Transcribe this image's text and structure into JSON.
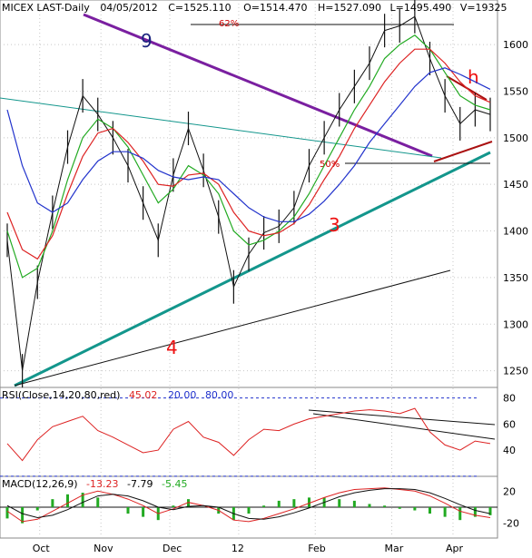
{
  "chart_data": [
    {
      "type": "line",
      "panel": "price",
      "header": {
        "symbol": "MICEX LAST-Daily",
        "date": "04/05/2012",
        "close": "C=1525.110",
        "open": "O=1514.470",
        "high": "H=1527.090",
        "low": "L=1495.490",
        "volume": "V=19325"
      },
      "x_tick_labels": [
        "Oct",
        "Nov",
        "Dec",
        "12",
        "Feb",
        "Mar",
        "Apr"
      ],
      "y_tick_labels": [
        "1600",
        "1550",
        "1500",
        "1450",
        "1400",
        "1350",
        "1300",
        "1250"
      ],
      "ylim": [
        1237,
        1640
      ],
      "grid": true,
      "annotations": [
        "62%",
        "50%",
        "9",
        "3",
        "4",
        "h"
      ],
      "colors": {
        "close": "#111111",
        "ma_fast": "#22aa22",
        "ma_mid": "#dd2222",
        "ma_slow": "#2233cc",
        "line9": "#7a1fa0",
        "line3": "#13968c",
        "h": "#aa1111",
        "label9": "#1a237e",
        "label3": "#ee1111",
        "label4": "#ee1111"
      },
      "series": [
        {
          "x": [
            0,
            4,
            8,
            12,
            16,
            20,
            24,
            28,
            32,
            36,
            40,
            44,
            48,
            52,
            56,
            60,
            64,
            68,
            72,
            76,
            80,
            84,
            88,
            92,
            96,
            100,
            104,
            108,
            112,
            116,
            120,
            124,
            128
          ],
          "values": [
            1390,
            1250,
            1345,
            1420,
            1490,
            1545,
            1525,
            1500,
            1470,
            1430,
            1390,
            1460,
            1510,
            1465,
            1415,
            1340,
            1375,
            1398,
            1405,
            1425,
            1470,
            1500,
            1530,
            1555,
            1580,
            1615,
            1620,
            1630,
            1585,
            1545,
            1515,
            1530,
            1525
          ]
        },
        {
          "x": [
            0,
            4,
            8,
            12,
            16,
            20,
            24,
            28,
            32,
            36,
            40,
            44,
            48,
            52,
            56,
            60,
            64,
            68,
            72,
            76,
            80,
            84,
            88,
            92,
            96,
            100,
            104,
            108,
            112,
            116,
            120,
            124,
            128
          ],
          "values": [
            1400,
            1350,
            1360,
            1400,
            1455,
            1500,
            1520,
            1510,
            1490,
            1460,
            1430,
            1445,
            1470,
            1460,
            1440,
            1400,
            1385,
            1390,
            1400,
            1415,
            1440,
            1470,
            1500,
            1530,
            1555,
            1585,
            1600,
            1610,
            1595,
            1570,
            1545,
            1535,
            1530
          ]
        },
        {
          "x": [
            0,
            4,
            8,
            12,
            16,
            20,
            24,
            28,
            32,
            36,
            40,
            44,
            48,
            52,
            56,
            60,
            64,
            68,
            72,
            76,
            80,
            84,
            88,
            92,
            96,
            100,
            104,
            108,
            112,
            116,
            120,
            124,
            128
          ],
          "values": [
            1420,
            1380,
            1370,
            1395,
            1440,
            1480,
            1505,
            1510,
            1495,
            1475,
            1450,
            1448,
            1460,
            1462,
            1450,
            1420,
            1400,
            1395,
            1398,
            1408,
            1428,
            1455,
            1480,
            1510,
            1535,
            1560,
            1580,
            1595,
            1595,
            1580,
            1560,
            1545,
            1538
          ]
        },
        {
          "x": [
            0,
            4,
            8,
            12,
            16,
            20,
            24,
            28,
            32,
            36,
            40,
            44,
            48,
            52,
            56,
            60,
            64,
            68,
            72,
            76,
            80,
            84,
            88,
            92,
            96,
            100,
            104,
            108,
            112,
            116,
            120,
            124,
            128
          ],
          "values": [
            1530,
            1470,
            1430,
            1420,
            1430,
            1455,
            1475,
            1485,
            1485,
            1478,
            1465,
            1458,
            1455,
            1458,
            1455,
            1440,
            1425,
            1415,
            1410,
            1410,
            1418,
            1432,
            1450,
            1470,
            1495,
            1515,
            1535,
            1555,
            1570,
            1575,
            1568,
            1560,
            1552
          ]
        }
      ]
    },
    {
      "type": "line",
      "panel": "rsi",
      "header": {
        "label": "RSI(Close,14,20,80,red)",
        "value": "45.02",
        "lower": "20.00",
        "upper": "80.00"
      },
      "y_tick_labels": [
        "80",
        "60",
        "40"
      ],
      "ylim": [
        22,
        86
      ],
      "levels": [
        80,
        20
      ],
      "series": [
        {
          "x": [
            0,
            4,
            8,
            12,
            16,
            20,
            24,
            28,
            32,
            36,
            40,
            44,
            48,
            52,
            56,
            60,
            64,
            68,
            72,
            76,
            80,
            84,
            88,
            92,
            96,
            100,
            104,
            108,
            112,
            116,
            120,
            124,
            128
          ],
          "values": [
            45,
            32,
            48,
            58,
            62,
            66,
            55,
            50,
            44,
            38,
            40,
            56,
            62,
            50,
            46,
            36,
            48,
            56,
            55,
            60,
            64,
            66,
            68,
            70,
            71,
            70,
            68,
            72,
            54,
            44,
            40,
            47,
            45
          ]
        }
      ]
    },
    {
      "type": "line",
      "panel": "macd",
      "header": {
        "label": "MACD(12,26,9)",
        "macd": "-13.23",
        "signal": "-7.79",
        "hist": "-5.45"
      },
      "y_tick_labels": [
        "20",
        "-20"
      ],
      "ylim": [
        -35,
        35
      ],
      "series": [
        {
          "x": [
            0,
            4,
            8,
            12,
            16,
            20,
            24,
            28,
            32,
            36,
            40,
            44,
            48,
            52,
            56,
            60,
            64,
            68,
            72,
            76,
            80,
            84,
            88,
            92,
            96,
            100,
            104,
            108,
            112,
            116,
            120,
            124,
            128
          ],
          "values": [
            -5,
            -18,
            -15,
            -5,
            5,
            15,
            20,
            16,
            10,
            2,
            -8,
            -2,
            6,
            2,
            -4,
            -16,
            -18,
            -14,
            -8,
            -2,
            5,
            12,
            18,
            22,
            23,
            24,
            22,
            20,
            14,
            5,
            -5,
            -10,
            -13
          ]
        },
        {
          "x": [
            0,
            4,
            8,
            12,
            16,
            20,
            24,
            28,
            32,
            36,
            40,
            44,
            48,
            52,
            56,
            60,
            64,
            68,
            72,
            76,
            80,
            84,
            88,
            92,
            96,
            100,
            104,
            108,
            112,
            116,
            120,
            124,
            128
          ],
          "values": [
            2,
            -8,
            -13,
            -10,
            -3,
            6,
            14,
            16,
            14,
            8,
            0,
            -3,
            1,
            2,
            0,
            -8,
            -14,
            -15,
            -12,
            -7,
            -1,
            6,
            13,
            18,
            21,
            23,
            23,
            22,
            18,
            11,
            3,
            -4,
            -8
          ]
        }
      ]
    }
  ]
}
